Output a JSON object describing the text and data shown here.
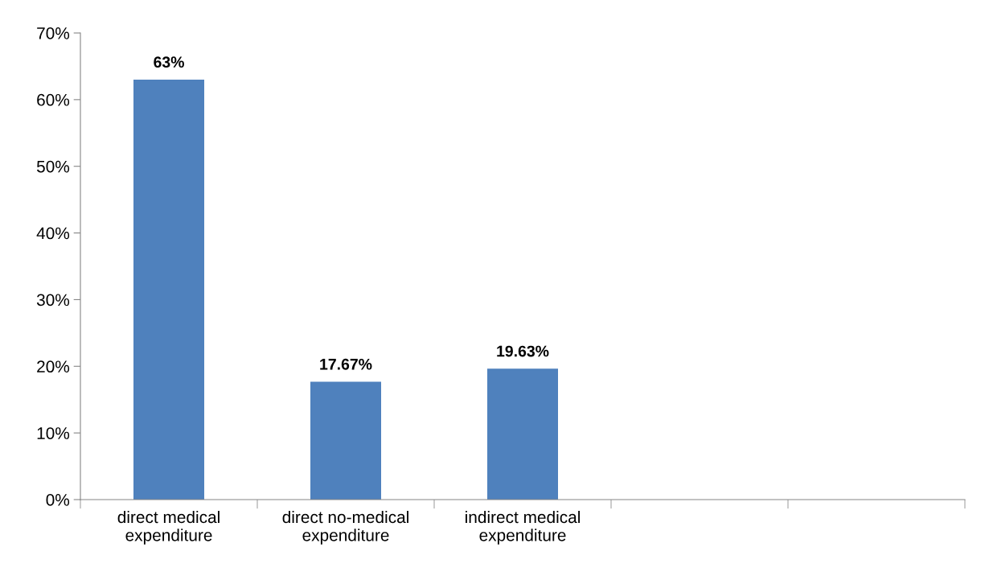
{
  "chart_data": {
    "type": "bar",
    "categories": [
      "direct medical\nexpenditure",
      "direct no-medical\nexpenditure",
      "indirect medical\nexpenditure",
      null,
      null
    ],
    "values": [
      63,
      17.67,
      19.63,
      null,
      null
    ],
    "value_labels": [
      "63%",
      "17.67%",
      "19.63%",
      null,
      null
    ],
    "color": "#4f81bd",
    "ylim": [
      0,
      70
    ],
    "yticks": [
      {
        "value": 0,
        "label": "0%"
      },
      {
        "value": 10,
        "label": "10%"
      },
      {
        "value": 20,
        "label": "20%"
      },
      {
        "value": 30,
        "label": "30%"
      },
      {
        "value": 40,
        "label": "40%"
      },
      {
        "value": 50,
        "label": "50%"
      },
      {
        "value": 60,
        "label": "60%"
      },
      {
        "value": 70,
        "label": "70%"
      }
    ],
    "grid": false,
    "legend": false
  }
}
